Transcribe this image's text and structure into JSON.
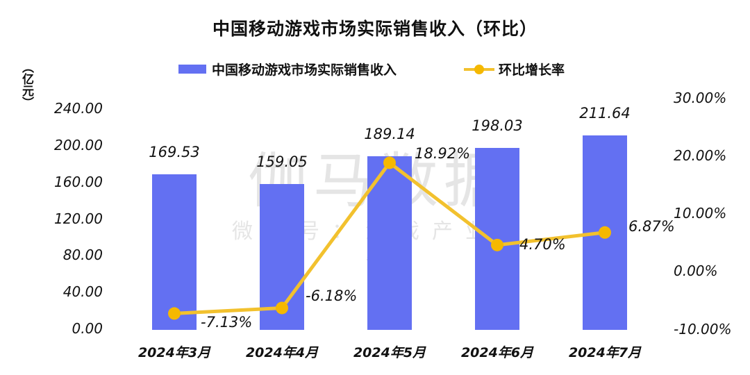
{
  "title": "中国移动游戏市场实际销售收入（环比）",
  "unit_label": "（亿元）",
  "watermark": {
    "main": "伽马数据",
    "sub": "微信号：游戏产业报告"
  },
  "legend": {
    "bar_label": "中国移动游戏市场实际销售收入",
    "line_label": "环比增长率"
  },
  "colors": {
    "bar": "#6370F2",
    "line": "#F2C12E",
    "dot": "#F5B800",
    "text": "#111111"
  },
  "left_axis": {
    "ticks": [
      "240.00",
      "200.00",
      "160.00",
      "120.00",
      "80.00",
      "40.00",
      "0.00"
    ]
  },
  "right_axis": {
    "ticks": [
      "30.00%",
      "20.00%",
      "10.00%",
      "0.00%",
      "-10.00%"
    ]
  },
  "chart_data": {
    "type": "bar",
    "title": "中国移动游戏市场实际销售收入（环比）",
    "xlabel": "",
    "ylabel": "亿元",
    "y2label": "环比增长率",
    "categories": [
      "2024年3月",
      "2024年4月",
      "2024年5月",
      "2024年6月",
      "2024年7月"
    ],
    "series": [
      {
        "name": "中国移动游戏市场实际销售收入",
        "type": "bar",
        "axis": "left",
        "values": [
          169.53,
          159.05,
          189.14,
          198.03,
          211.64
        ],
        "labels": [
          "169.53",
          "159.05",
          "189.14",
          "198.03",
          "211.64"
        ]
      },
      {
        "name": "环比增长率",
        "type": "line",
        "axis": "right",
        "values": [
          -7.13,
          -6.18,
          18.92,
          4.7,
          6.87
        ],
        "labels": [
          "-7.13%",
          "-6.18%",
          "18.92%",
          "4.70%",
          "6.87%"
        ]
      }
    ],
    "ylim": [
      0,
      240
    ],
    "y2lim": [
      -10,
      30
    ],
    "grid": false,
    "legend_position": "top"
  }
}
